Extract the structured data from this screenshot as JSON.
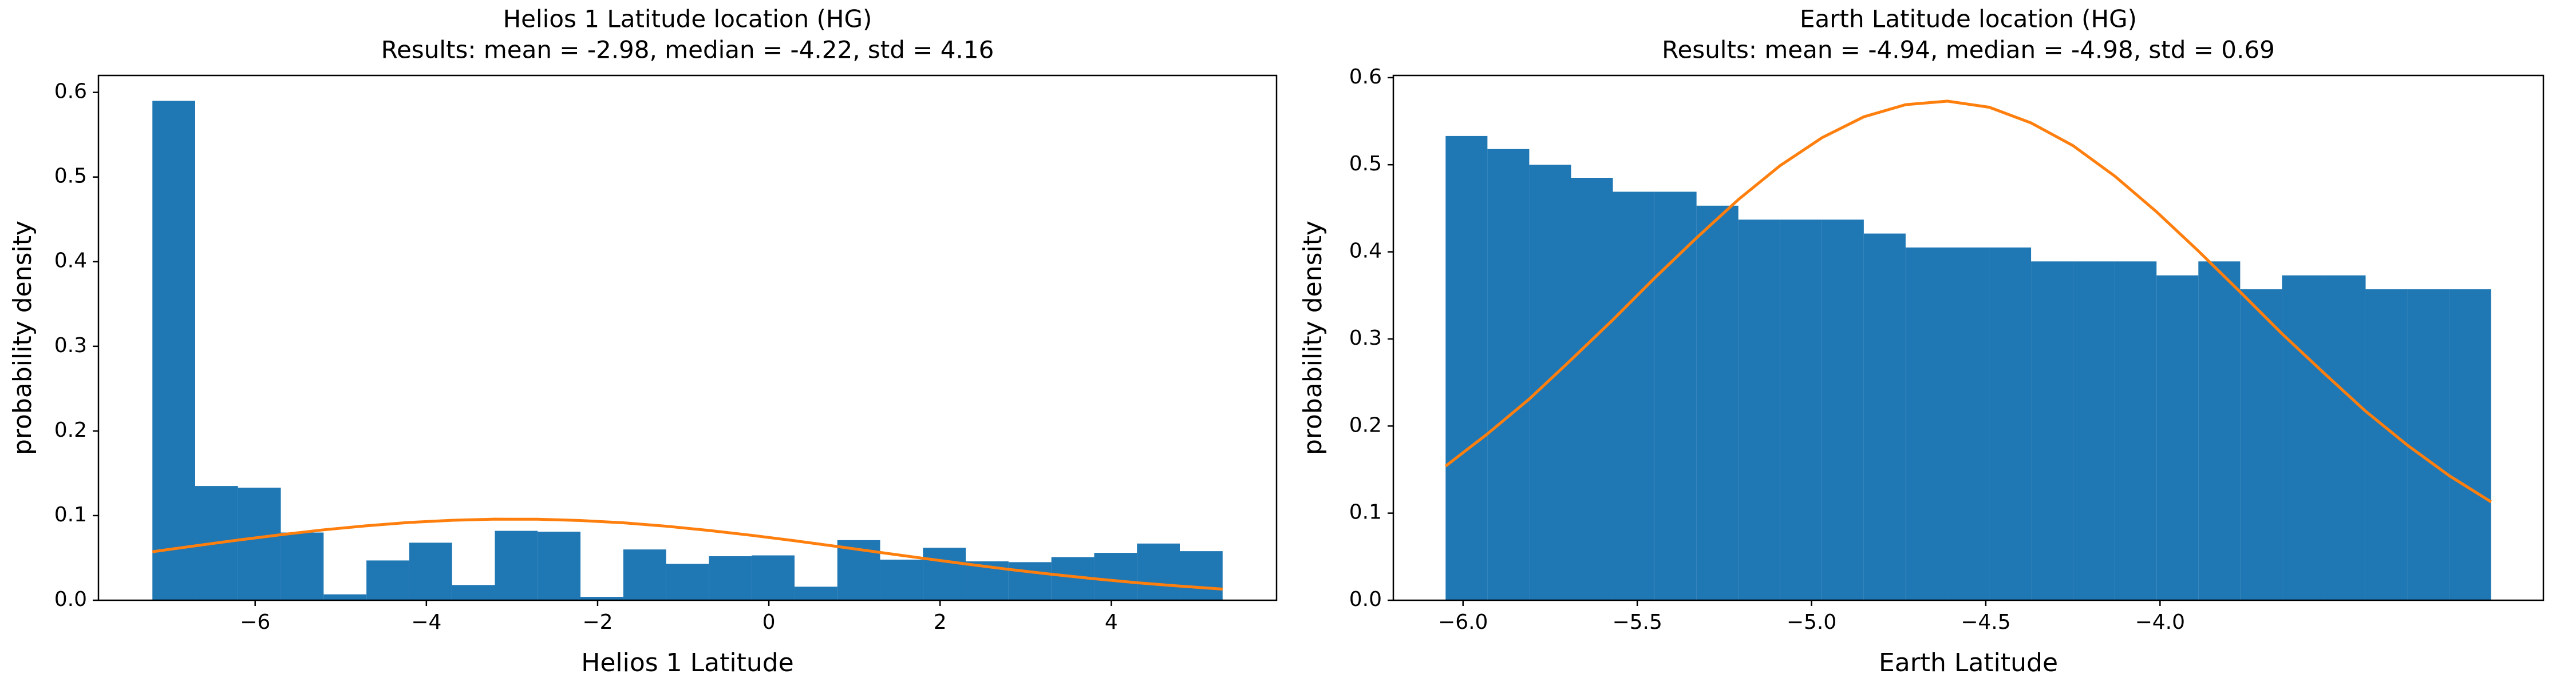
{
  "chart_data": [
    {
      "type": "histogram",
      "title": "Helios 1 Latitude location (HG)",
      "subtitle": "Results: mean = -2.98, median = -4.22, std = 4.16",
      "xlabel": "Helios 1 Latitude",
      "ylabel": "probability density",
      "bins": [
        -7.2,
        -6.7,
        -6.2,
        -5.7,
        -5.2,
        -4.7,
        -4.2,
        -3.7,
        -3.2,
        -2.7,
        -2.2,
        -1.7,
        -1.2,
        -0.7,
        -0.2,
        0.3,
        0.8,
        1.3,
        1.8,
        2.3,
        2.8,
        3.3,
        3.8,
        4.3,
        4.8,
        5.3
      ],
      "values": [
        0.59,
        0.135,
        0.133,
        0.08,
        0.007,
        0.047,
        0.068,
        0.018,
        0.082,
        0.081,
        0.004,
        0.06,
        0.043,
        0.052,
        0.053,
        0.016,
        0.071,
        0.048,
        0.062,
        0.046,
        0.045,
        0.051,
        0.056,
        0.067,
        0.058
      ],
      "color": "#1f77b4",
      "curve": {
        "color": "#ff7f0e",
        "x": [
          -7.2,
          -6.7,
          -6.2,
          -5.7,
          -5.2,
          -4.7,
          -4.2,
          -3.7,
          -3.2,
          -2.7,
          -2.2,
          -1.7,
          -1.2,
          -0.7,
          -0.2,
          0.3,
          0.8,
          1.3,
          1.8,
          2.3,
          2.8,
          3.3,
          3.8,
          4.3,
          4.8,
          5.3
        ],
        "values": [
          0.0573,
          0.0643,
          0.0711,
          0.0774,
          0.0832,
          0.088,
          0.0919,
          0.0945,
          0.0958,
          0.0957,
          0.0942,
          0.0915,
          0.0875,
          0.0825,
          0.0767,
          0.0703,
          0.0635,
          0.0565,
          0.0496,
          0.0429,
          0.0365,
          0.0307,
          0.0254,
          0.0207,
          0.0167,
          0.0132
        ]
      },
      "xlim": [
        -7.83,
        5.93
      ],
      "ylim": [
        0,
        0.62
      ],
      "xticks": [
        {
          "value": -6,
          "label": "−6"
        },
        {
          "value": -4,
          "label": "−4"
        },
        {
          "value": -2,
          "label": "−2"
        },
        0,
        2,
        4
      ],
      "yticks": [
        {
          "value": 0,
          "label": "0.0"
        },
        {
          "value": 0.1,
          "label": "0.1"
        },
        {
          "value": 0.2,
          "label": "0.2"
        },
        {
          "value": 0.3,
          "label": "0.3"
        },
        {
          "value": 0.4,
          "label": "0.4"
        },
        {
          "value": 0.5,
          "label": "0.5"
        },
        {
          "value": 0.6,
          "label": "0.6"
        }
      ]
    },
    {
      "type": "histogram",
      "title": "Earth Latitude location (HG)",
      "subtitle": "Results: mean = -4.94, median = -4.98, std = 0.69",
      "xlabel": "Earth Latitude",
      "ylabel": "probability density",
      "bins": [
        -6.05,
        -5.93,
        -5.81,
        -5.69,
        -5.57,
        -5.45,
        -5.33,
        -5.21,
        -5.09,
        -4.97,
        -4.85,
        -4.73,
        -4.61,
        -4.49,
        -4.37,
        -4.25,
        -4.13,
        -4.01,
        -3.89,
        -3.77,
        -3.65,
        -3.53,
        -3.41,
        -3.29,
        -3.17,
        -3.05
      ],
      "values": [
        0.533,
        0.518,
        0.5,
        0.485,
        0.469,
        0.469,
        0.453,
        0.437,
        0.437,
        0.437,
        0.421,
        0.405,
        0.405,
        0.405,
        0.389,
        0.389,
        0.389,
        0.373,
        0.389,
        0.357,
        0.373,
        0.373,
        0.357,
        0.357,
        0.357
      ],
      "color": "#1f77b4",
      "curve": {
        "color": "#ff7f0e",
        "x": [
          -6.05,
          -5.93,
          -5.81,
          -5.69,
          -5.57,
          -5.45,
          -5.33,
          -5.21,
          -5.09,
          -4.97,
          -4.85,
          -4.73,
          -4.61,
          -4.49,
          -4.37,
          -4.25,
          -4.13,
          -4.01,
          -3.89,
          -3.77,
          -3.65,
          -3.53,
          -3.41,
          -3.29,
          -3.17,
          -3.05
        ],
        "values": [
          0.154,
          0.191,
          0.231,
          0.276,
          0.322,
          0.37,
          0.416,
          0.46,
          0.499,
          0.531,
          0.555,
          0.569,
          0.573,
          0.566,
          0.548,
          0.522,
          0.487,
          0.446,
          0.401,
          0.354,
          0.306,
          0.261,
          0.217,
          0.178,
          0.143,
          0.113
        ]
      },
      "xlim": [
        -6.2,
        -2.9
      ],
      "ylim": [
        0,
        0.6025
      ],
      "xticks": [
        {
          "value": -6,
          "label": "−6.0"
        },
        {
          "value": -5.5,
          "label": "−5.5"
        },
        {
          "value": -5,
          "label": "−5.0"
        },
        {
          "value": -4.5,
          "label": "−4.5"
        },
        {
          "value": -4,
          "label": "−4.0"
        }
      ],
      "yticks": [
        {
          "value": 0,
          "label": "0.0"
        },
        {
          "value": 0.1,
          "label": "0.1"
        },
        {
          "value": 0.2,
          "label": "0.2"
        },
        {
          "value": 0.3,
          "label": "0.3"
        },
        {
          "value": 0.4,
          "label": "0.4"
        },
        {
          "value": 0.5,
          "label": "0.5"
        },
        {
          "value": 0.6,
          "label": "0.6"
        }
      ]
    }
  ]
}
